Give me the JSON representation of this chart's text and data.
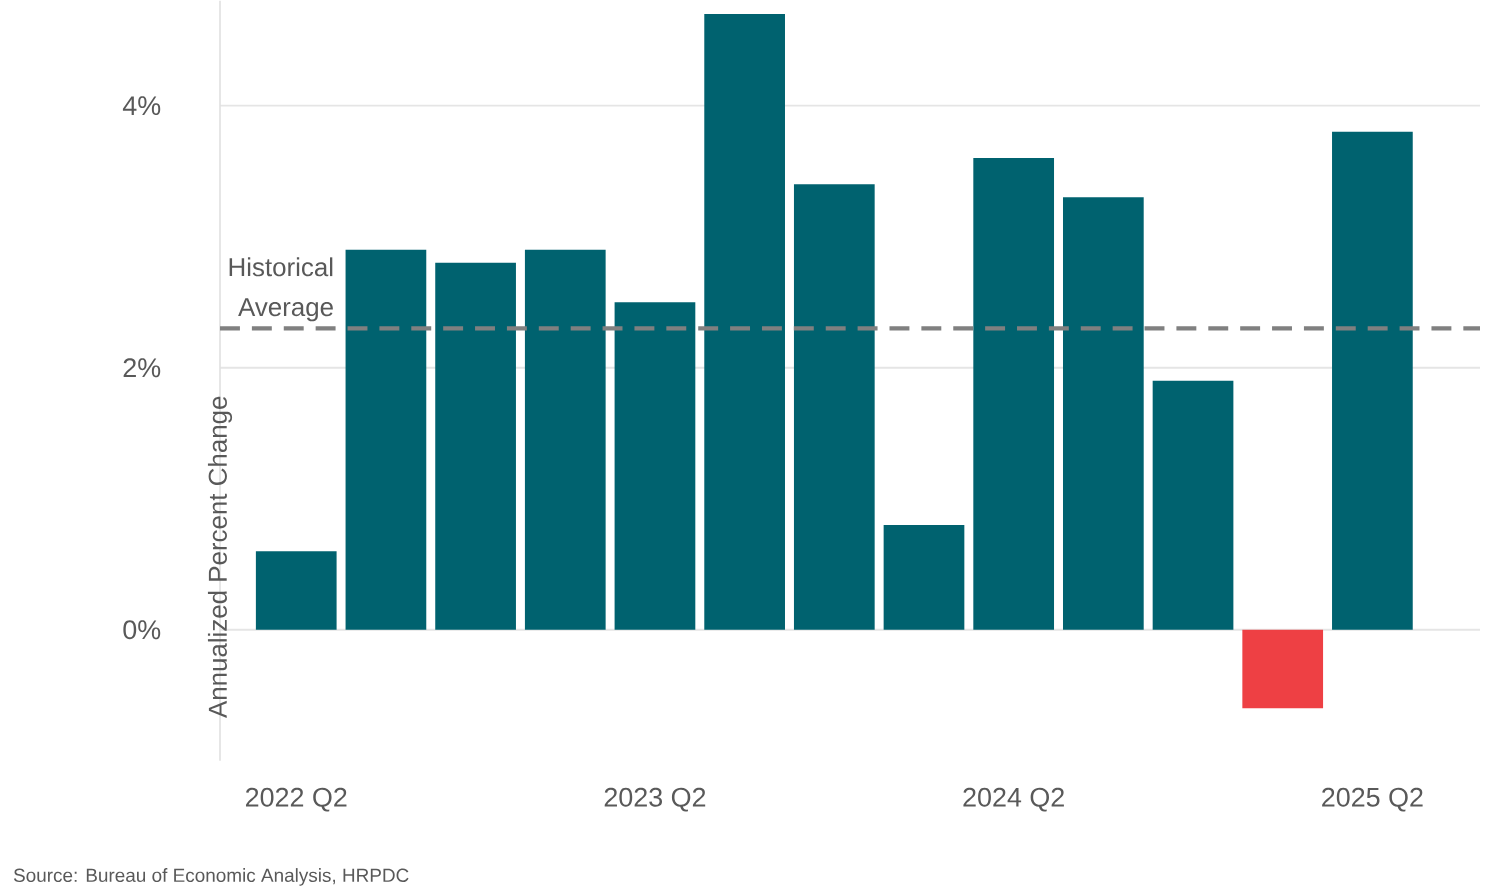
{
  "chart_data": {
    "type": "bar",
    "ylabel": "Annualized Percent Change",
    "categories": [
      "2022 Q2",
      null,
      null,
      null,
      "2023 Q2",
      null,
      null,
      null,
      "2024 Q2",
      null,
      null,
      null,
      "2025 Q2"
    ],
    "values": [
      0.6,
      2.9,
      2.8,
      2.9,
      2.5,
      4.7,
      3.4,
      0.8,
      3.6,
      3.3,
      1.9,
      -0.6,
      3.8
    ],
    "colors": [
      "#00626f",
      "#00626f",
      "#00626f",
      "#00626f",
      "#00626f",
      "#00626f",
      "#00626f",
      "#00626f",
      "#00626f",
      "#00626f",
      "#00626f",
      "#ee4044",
      "#00626f"
    ],
    "yticks": [
      {
        "value": 0,
        "label": "0%"
      },
      {
        "value": 2,
        "label": "2%"
      },
      {
        "value": 4,
        "label": "4%"
      }
    ],
    "ylim": [
      -1,
      4.8
    ],
    "grid": "y",
    "ref_lines": [
      {
        "axis": "y",
        "value": 2.3,
        "label": "Historical Average",
        "color": "#808080",
        "line_style": "dashed"
      }
    ],
    "annotations": [
      "Source: Bureau of Economic Analysis, HRPDC"
    ]
  }
}
